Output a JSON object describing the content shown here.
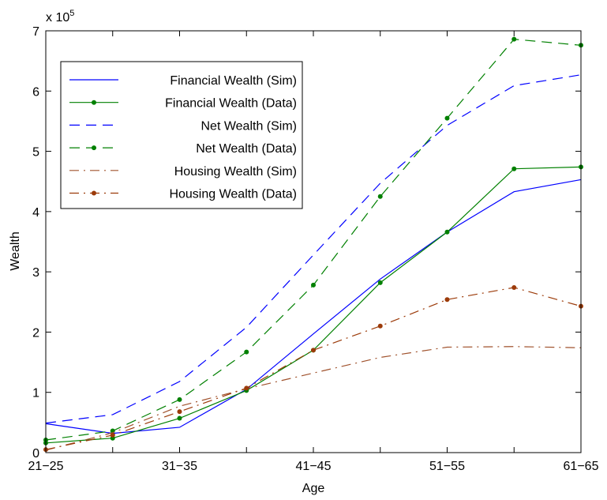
{
  "chart_data": {
    "type": "line",
    "title": "",
    "xlabel": "Age",
    "ylabel": "Wealth",
    "y_multiplier": "x 10",
    "y_multiplier_exp": "5",
    "categories": [
      "21−25",
      "",
      "31−35",
      "",
      "41−45",
      "",
      "51−55",
      "",
      "61−65"
    ],
    "ylim": [
      0,
      7
    ],
    "yticks": [
      0,
      1,
      2,
      3,
      4,
      5,
      6,
      7
    ],
    "yticklabels": [
      "0",
      "1",
      "2",
      "3",
      "4",
      "5",
      "6",
      "7"
    ],
    "legend_position": "top-left",
    "grid": false,
    "series": [
      {
        "name": "Financial Wealth (Sim)",
        "color": "#0000ff",
        "dash": "solid",
        "marker": false,
        "values": [
          0.48,
          0.32,
          0.42,
          1.05,
          1.97,
          2.88,
          3.66,
          4.33,
          4.53
        ]
      },
      {
        "name": "Financial Wealth (Data)",
        "color": "#008000",
        "dash": "solid",
        "marker": true,
        "values": [
          0.16,
          0.24,
          0.57,
          1.03,
          1.7,
          2.82,
          3.66,
          4.71,
          4.74
        ]
      },
      {
        "name": "Net Wealth (Sim)",
        "color": "#0000ff",
        "dash": "dashed",
        "marker": false,
        "values": [
          0.49,
          0.63,
          1.18,
          2.08,
          3.28,
          4.47,
          5.43,
          6.09,
          6.27
        ]
      },
      {
        "name": "Net Wealth (Data)",
        "color": "#008000",
        "dash": "dashed",
        "marker": true,
        "values": [
          0.21,
          0.36,
          0.88,
          1.67,
          2.78,
          4.25,
          5.55,
          6.86,
          6.76
        ]
      },
      {
        "name": "Housing Wealth (Sim)",
        "color": "#a0522d",
        "dash": "dashdot",
        "marker": false,
        "values": [
          0.04,
          0.33,
          0.77,
          1.06,
          1.32,
          1.58,
          1.75,
          1.76,
          1.74
        ]
      },
      {
        "name": "Housing Wealth (Data)",
        "color": "#9c3b0a",
        "dash": "dashdot",
        "marker": true,
        "values": [
          0.05,
          0.29,
          0.68,
          1.07,
          1.7,
          2.1,
          2.54,
          2.74,
          2.43
        ]
      }
    ]
  }
}
